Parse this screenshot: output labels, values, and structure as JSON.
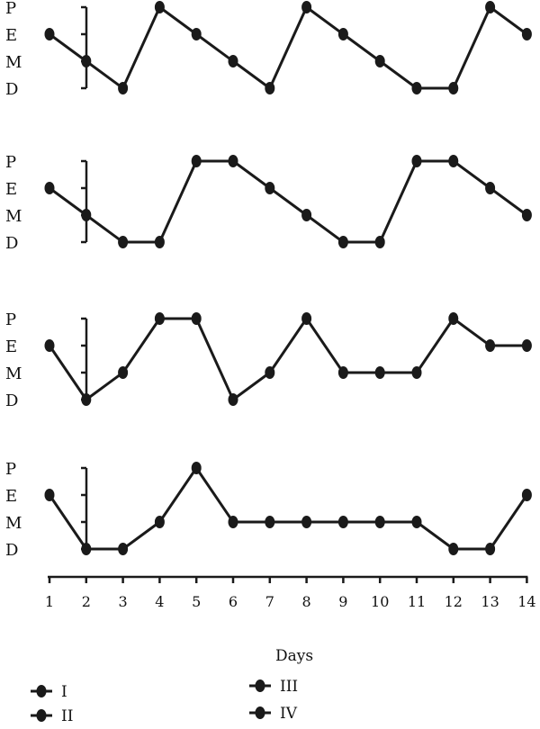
{
  "colors": {
    "ink": "#1a1a1a",
    "background": "#ffffff"
  },
  "chart_data": {
    "type": "line",
    "x": [
      1,
      2,
      3,
      4,
      5,
      6,
      7,
      8,
      9,
      10,
      11,
      12,
      13,
      14
    ],
    "x_tick_labels": [
      "1",
      "2",
      "3",
      "4",
      "5",
      "6",
      "7",
      "8",
      "9",
      "10",
      "11",
      "12",
      "13",
      "14"
    ],
    "xlabel": "Days",
    "y_categories": [
      "D",
      "M",
      "E",
      "P"
    ],
    "y_tick_labels": [
      "P",
      "E",
      "M",
      "D"
    ],
    "legend_position": "bottom",
    "series": [
      {
        "name": "I",
        "values": [
          "E",
          "M",
          "D",
          "P",
          "E",
          "M",
          "D",
          "P",
          "E",
          "M",
          "D",
          "D",
          "P",
          "E"
        ]
      },
      {
        "name": "II",
        "values": [
          "E",
          "M",
          "D",
          "D",
          "P",
          "P",
          "E",
          "M",
          "D",
          "D",
          "P",
          "P",
          "E",
          "M"
        ]
      },
      {
        "name": "III",
        "values": [
          "E",
          "D",
          "M",
          "P",
          "P",
          "D",
          "M",
          "P",
          "M",
          "M",
          "M",
          "P",
          "E",
          "E"
        ]
      },
      {
        "name": "IV",
        "values": [
          "E",
          "D",
          "D",
          "M",
          "P",
          "M",
          "M",
          "M",
          "M",
          "M",
          "M",
          "D",
          "D",
          "E"
        ]
      }
    ]
  }
}
